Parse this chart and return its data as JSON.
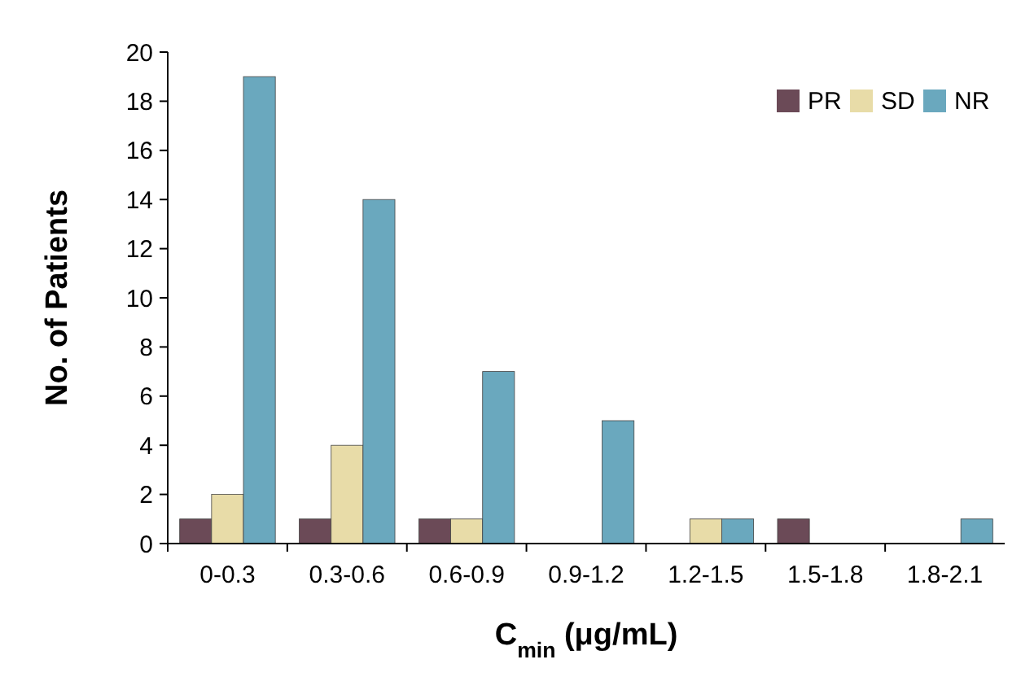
{
  "chart_data": {
    "type": "bar",
    "xlabel": "C$_{min}$ (μg/mL)",
    "ylabel": "No. of Patients",
    "categories": [
      "0-0.3",
      "0.3-0.6",
      "0.6-0.9",
      "0.9-1.2",
      "1.2-1.5",
      "1.5-1.8",
      "1.8-2.1"
    ],
    "series": [
      {
        "name": "PR",
        "color": "#6b4a57",
        "values": [
          1,
          1,
          1,
          0,
          0,
          1,
          0
        ]
      },
      {
        "name": "SD",
        "color": "#e8dca8",
        "values": [
          2,
          4,
          1,
          0,
          1,
          0,
          0
        ]
      },
      {
        "name": "NR",
        "color": "#6aa8be",
        "values": [
          19,
          14,
          7,
          5,
          1,
          0,
          1
        ]
      }
    ],
    "ylim": [
      0,
      20
    ],
    "yticks": [
      0,
      2,
      4,
      6,
      8,
      10,
      12,
      14,
      16,
      18,
      20
    ],
    "grid": false,
    "legend": "top right"
  }
}
